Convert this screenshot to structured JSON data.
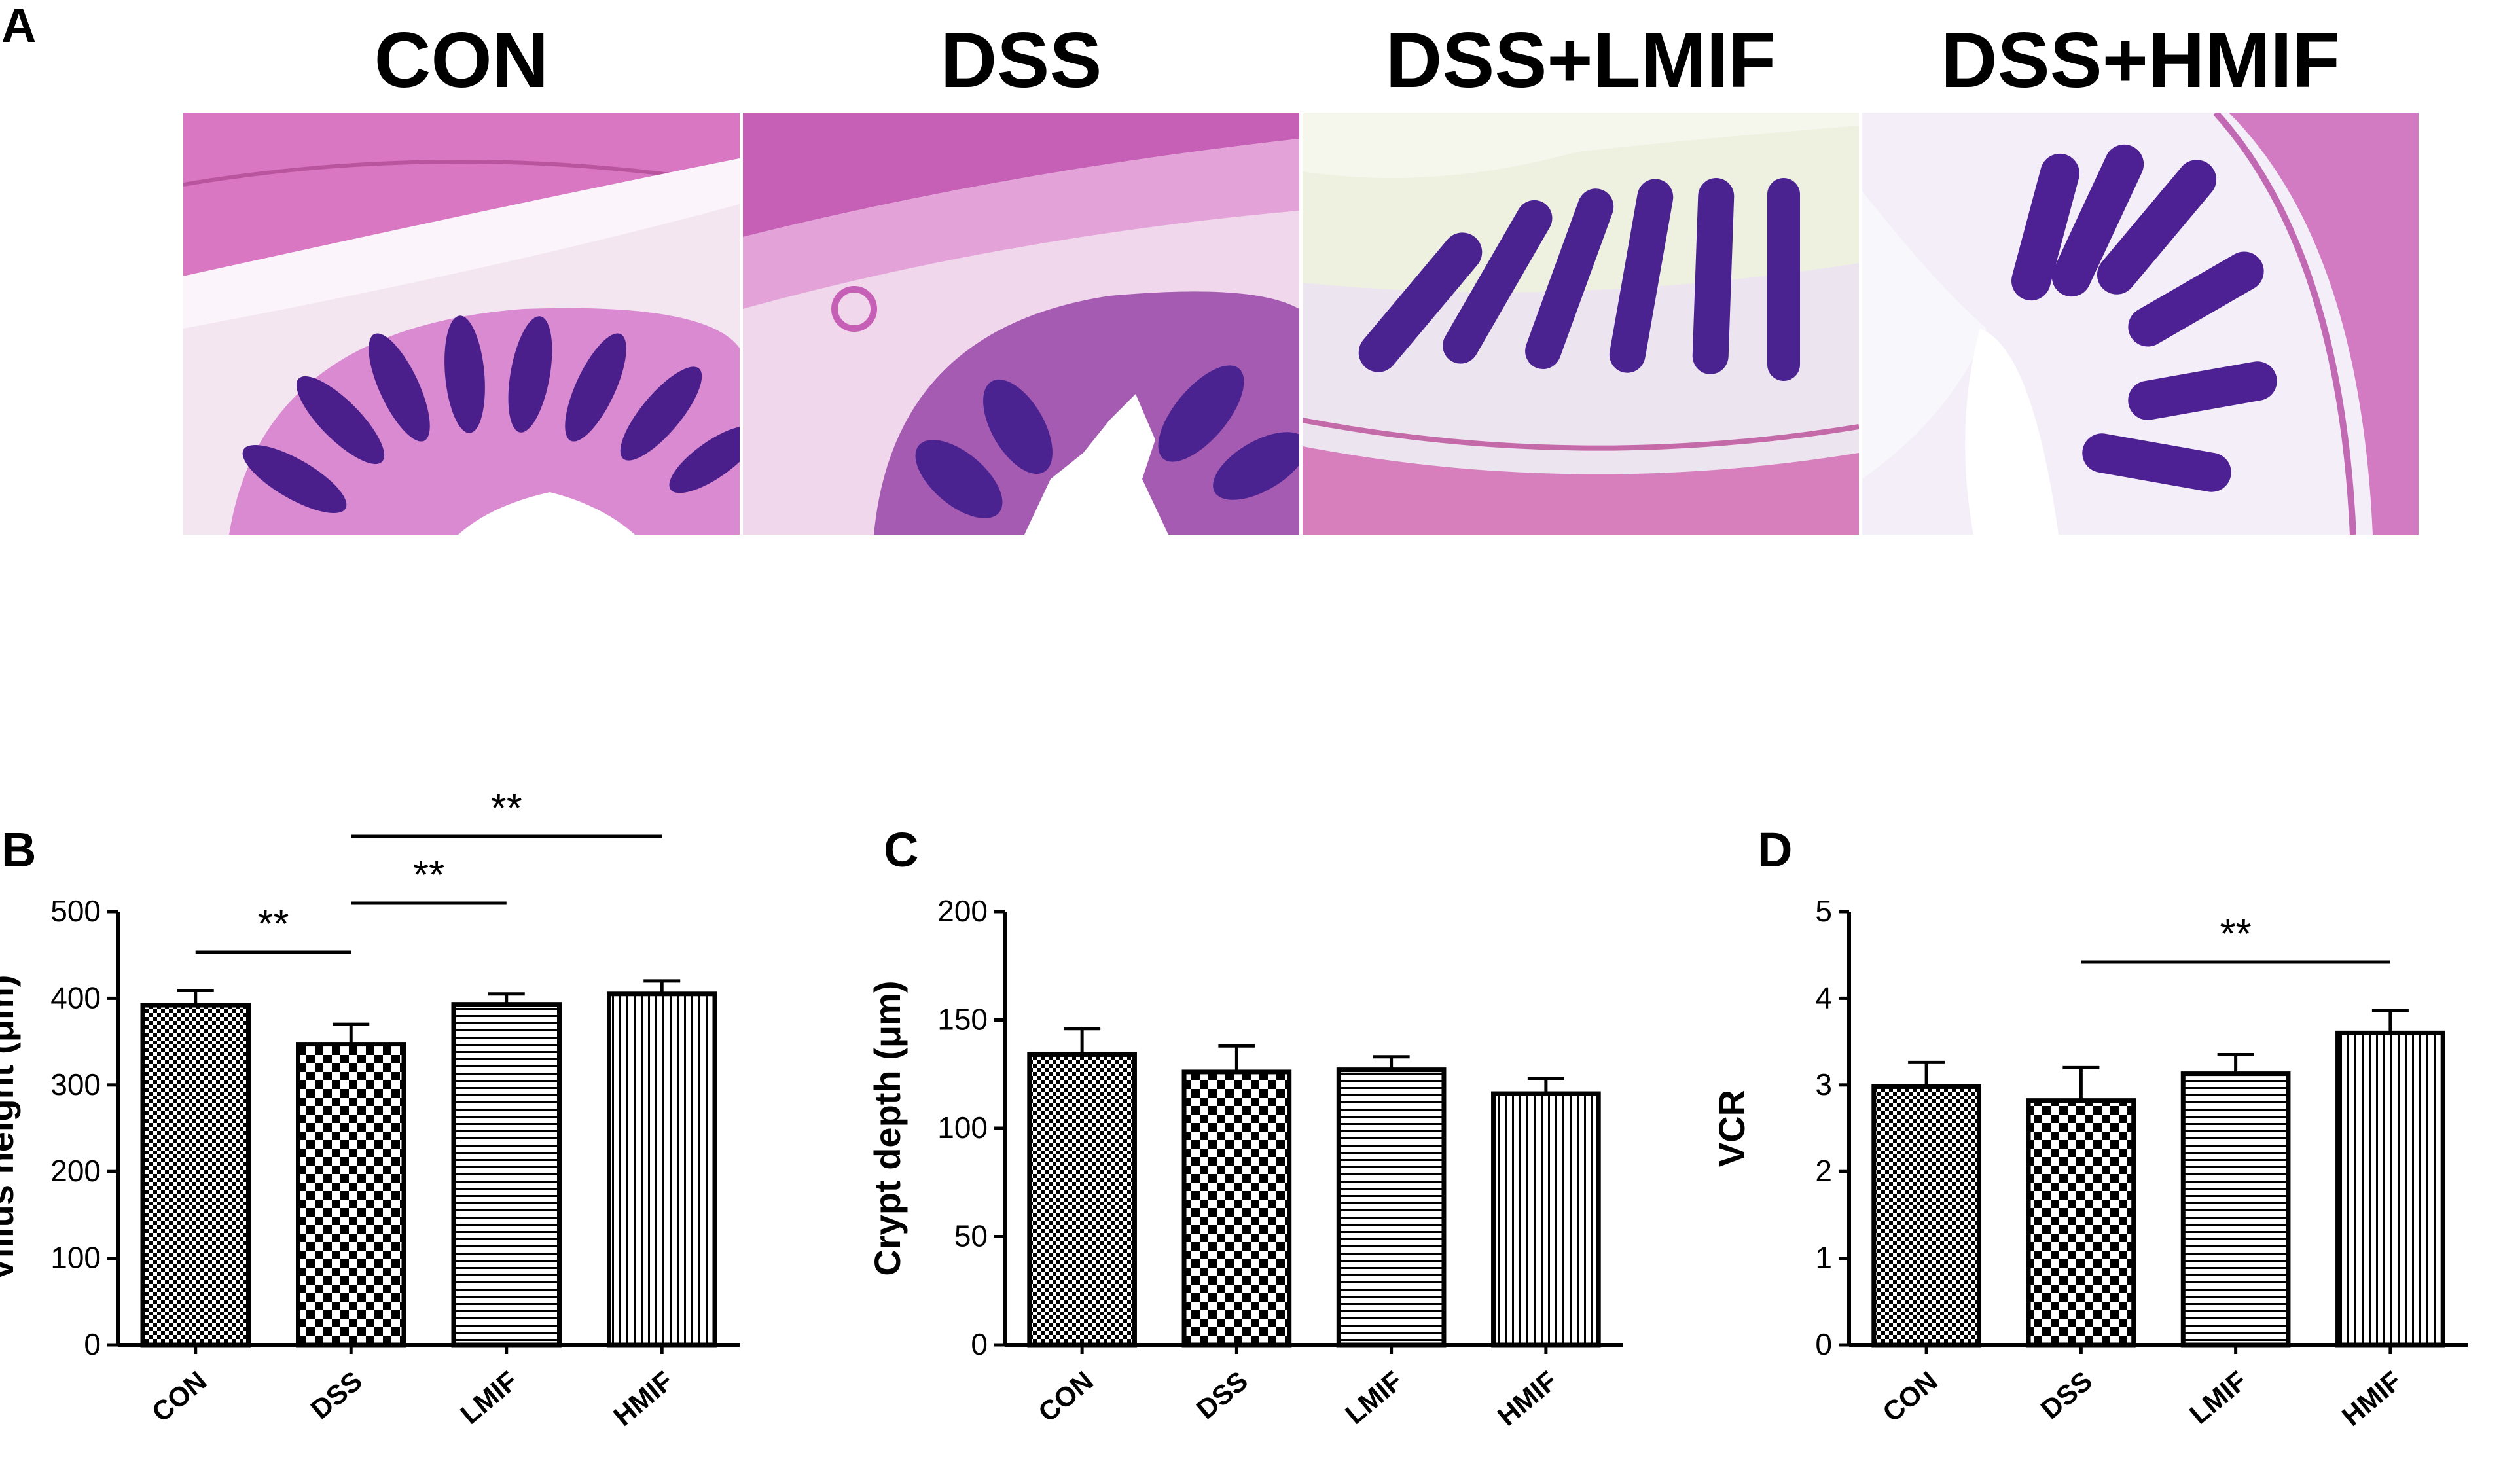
{
  "panels": {
    "A": "A",
    "B": "B",
    "C": "C",
    "D": "D"
  },
  "micrographs": [
    {
      "title": "CON",
      "style": "con"
    },
    {
      "title": "DSS",
      "style": "dss"
    },
    {
      "title": "DSS+LMIF",
      "style": "lmif"
    },
    {
      "title": "DSS+HMIF",
      "style": "hmif"
    }
  ],
  "colors": {
    "stain_pink": "#d977c3",
    "stain_purple": "#4a1f8c",
    "stain_background": "#f4eef8",
    "bar_outline": "#000000"
  },
  "chart_data": [
    {
      "type": "bar",
      "panel": "B",
      "categories": [
        "CON",
        "DSS",
        "LMIF",
        "HMIF"
      ],
      "values": [
        392,
        347,
        393,
        405
      ],
      "errors": [
        17,
        23,
        12,
        15
      ],
      "ylabel": "Villus height (μm)",
      "ylim": [
        0,
        500
      ],
      "yticks": [
        0,
        100,
        200,
        300,
        400,
        500
      ],
      "patterns": [
        "fine-check",
        "large-check",
        "horizontal-lines",
        "vertical-lines"
      ],
      "significance": [
        {
          "from": "CON",
          "to": "DSS",
          "label": "**"
        },
        {
          "from": "DSS",
          "to": "LMIF",
          "label": "**"
        },
        {
          "from": "DSS",
          "to": "HMIF",
          "label": "**"
        }
      ]
    },
    {
      "type": "bar",
      "panel": "C",
      "categories": [
        "CON",
        "DSS",
        "LMIF",
        "HMIF"
      ],
      "values": [
        134,
        126,
        127,
        116
      ],
      "errors": [
        12,
        12,
        6,
        7
      ],
      "ylabel": "Crypt depth (μm)",
      "ylim": [
        0,
        200
      ],
      "yticks": [
        0,
        50,
        100,
        150,
        200
      ],
      "patterns": [
        "fine-check",
        "large-check",
        "horizontal-lines",
        "vertical-lines"
      ],
      "significance": []
    },
    {
      "type": "bar",
      "panel": "D",
      "categories": [
        "CON",
        "DSS",
        "LMIF",
        "HMIF"
      ],
      "values": [
        2.98,
        2.82,
        3.13,
        3.6
      ],
      "errors": [
        0.28,
        0.38,
        0.22,
        0.26
      ],
      "ylabel": "VCR",
      "ylim": [
        0,
        5
      ],
      "yticks": [
        0,
        1,
        2,
        3,
        4,
        5
      ],
      "patterns": [
        "fine-check",
        "large-check",
        "horizontal-lines",
        "vertical-lines"
      ],
      "significance": [
        {
          "from": "DSS",
          "to": "HMIF",
          "label": "**"
        }
      ]
    }
  ]
}
